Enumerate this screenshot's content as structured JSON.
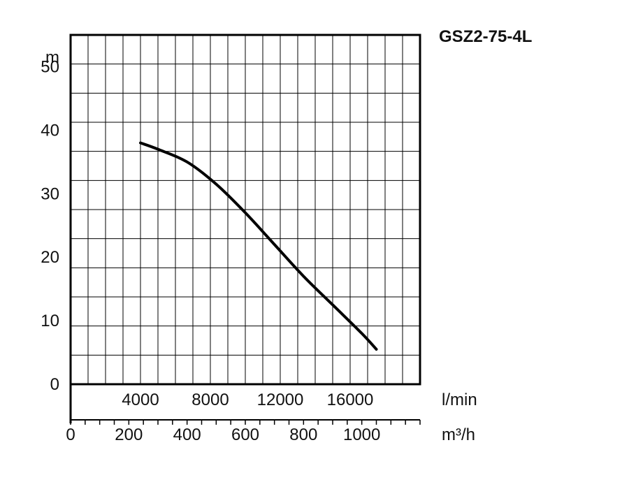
{
  "chart_data": {
    "type": "line",
    "title": "GSZ2-75-4L",
    "ylabel": "m",
    "x_unit_primary": "m³/h",
    "x_unit_secondary": "l/min",
    "ylim": [
      0,
      55
    ],
    "xlim": [
      0,
      1200
    ],
    "y_ticks": [
      "0",
      "10",
      "20",
      "30",
      "40",
      "50"
    ],
    "x_ticks_m3h": [
      "0",
      "200",
      "400",
      "600",
      "800",
      "1000"
    ],
    "x_ticks_lmin": [
      "4000",
      "8000",
      "12000",
      "16000"
    ],
    "grid": true,
    "series": [
      {
        "x": [
          240,
          300,
          400,
          500,
          600,
          700,
          800,
          900,
          1000,
          1050
        ],
        "y": [
          38,
          37,
          35,
          31.5,
          27,
          22,
          17,
          12.5,
          8,
          5.5
        ]
      }
    ]
  }
}
